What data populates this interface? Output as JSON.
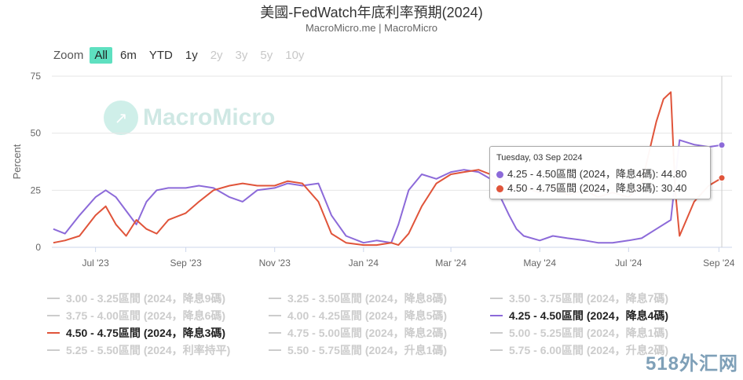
{
  "title": "美國-FedWatch年底利率預期(2024)",
  "subtitle": "MacroMicro.me | MacroMicro",
  "zoom": {
    "label": "Zoom",
    "buttons": [
      {
        "label": "All",
        "state": "active"
      },
      {
        "label": "6m",
        "state": "enabled"
      },
      {
        "label": "YTD",
        "state": "enabled"
      },
      {
        "label": "1y",
        "state": "enabled"
      },
      {
        "label": "2y",
        "state": "disabled"
      },
      {
        "label": "3y",
        "state": "disabled"
      },
      {
        "label": "5y",
        "state": "disabled"
      },
      {
        "label": "10y",
        "state": "disabled"
      }
    ]
  },
  "watermark": "MacroMicro",
  "corner_mark": "518外汇网",
  "tooltip": {
    "date": "Tuesday, 03 Sep 2024",
    "rows": [
      {
        "text": "4.25 - 4.50區間 (2024，降息4碼): 44.80",
        "color": "#8c6ad9"
      },
      {
        "text": "4.50 - 4.75區間 (2024，降息3碼): 30.40",
        "color": "#e0543a"
      }
    ]
  },
  "legend": [
    {
      "label": "3.00 - 3.25區間 (2024，降息9碼)",
      "on": false
    },
    {
      "label": "3.25 - 3.50區間 (2024，降息8碼)",
      "on": false
    },
    {
      "label": "3.50 - 3.75區間 (2024，降息7碼)",
      "on": false
    },
    {
      "label": "3.75 - 4.00區間 (2024，降息6碼)",
      "on": false
    },
    {
      "label": "4.00 - 4.25區間 (2024，降息5碼)",
      "on": false
    },
    {
      "label": "4.25 - 4.50區間 (2024，降息4碼)",
      "on": true,
      "color": "#8c6ad9"
    },
    {
      "label": "4.50 - 4.75區間 (2024，降息3碼)",
      "on": true,
      "color": "#e0543a"
    },
    {
      "label": "4.75 - 5.00區間 (2024，降息2碼)",
      "on": false
    },
    {
      "label": "5.00 - 5.25區間 (2024，降息1碼)",
      "on": false
    },
    {
      "label": "5.25 - 5.50區間 (2024，利率持平)",
      "on": false
    },
    {
      "label": "5.50 - 5.75區間 (2024，升息1碼)",
      "on": false
    },
    {
      "label": "5.75 - 6.00區間 (2024，升息2碼)",
      "on": false
    }
  ],
  "chart_data": {
    "type": "line",
    "ylabel": "Percent",
    "ylim": [
      0,
      75
    ],
    "yticks": [
      0,
      25,
      50,
      75
    ],
    "xlim": [
      "2023-06-01",
      "2024-09-10"
    ],
    "xticks": [
      {
        "date": "2023-07-01",
        "label": "Jul '23"
      },
      {
        "date": "2023-09-01",
        "label": "Sep '23"
      },
      {
        "date": "2023-11-01",
        "label": "Nov '23"
      },
      {
        "date": "2024-01-01",
        "label": "Jan '24"
      },
      {
        "date": "2024-03-01",
        "label": "Mar '24"
      },
      {
        "date": "2024-05-01",
        "label": "May '24"
      },
      {
        "date": "2024-07-01",
        "label": "Jul '24"
      },
      {
        "date": "2024-09-01",
        "label": "Sep '24"
      }
    ],
    "grid": true,
    "series": [
      {
        "name": "4.25 - 4.50區間 (2024，降息4碼)",
        "color": "#8c6ad9",
        "points": [
          [
            "2023-06-02",
            8
          ],
          [
            "2023-06-10",
            6
          ],
          [
            "2023-06-20",
            14
          ],
          [
            "2023-07-01",
            22
          ],
          [
            "2023-07-08",
            25
          ],
          [
            "2023-07-15",
            22
          ],
          [
            "2023-07-22",
            16
          ],
          [
            "2023-07-29",
            10
          ],
          [
            "2023-08-05",
            20
          ],
          [
            "2023-08-12",
            25
          ],
          [
            "2023-08-20",
            26
          ],
          [
            "2023-09-01",
            26
          ],
          [
            "2023-09-10",
            27
          ],
          [
            "2023-09-20",
            26
          ],
          [
            "2023-10-01",
            22
          ],
          [
            "2023-10-10",
            20
          ],
          [
            "2023-10-20",
            25
          ],
          [
            "2023-11-01",
            26
          ],
          [
            "2023-11-10",
            28
          ],
          [
            "2023-11-20",
            27
          ],
          [
            "2023-12-01",
            28
          ],
          [
            "2023-12-10",
            14
          ],
          [
            "2023-12-20",
            5
          ],
          [
            "2024-01-01",
            2
          ],
          [
            "2024-01-10",
            3
          ],
          [
            "2024-01-20",
            2
          ],
          [
            "2024-01-25",
            10
          ],
          [
            "2024-02-01",
            25
          ],
          [
            "2024-02-10",
            32
          ],
          [
            "2024-02-20",
            30
          ],
          [
            "2024-03-01",
            33
          ],
          [
            "2024-03-10",
            34
          ],
          [
            "2024-03-20",
            33
          ],
          [
            "2024-03-28",
            30
          ],
          [
            "2024-04-01",
            26
          ],
          [
            "2024-04-10",
            14
          ],
          [
            "2024-04-15",
            8
          ],
          [
            "2024-04-20",
            5
          ],
          [
            "2024-05-01",
            3
          ],
          [
            "2024-05-10",
            5
          ],
          [
            "2024-05-20",
            4
          ],
          [
            "2024-06-01",
            3
          ],
          [
            "2024-06-10",
            2
          ],
          [
            "2024-06-20",
            2
          ],
          [
            "2024-07-01",
            3
          ],
          [
            "2024-07-10",
            4
          ],
          [
            "2024-07-20",
            8
          ],
          [
            "2024-07-30",
            12
          ],
          [
            "2024-08-05",
            47
          ],
          [
            "2024-08-15",
            45
          ],
          [
            "2024-08-25",
            44
          ],
          [
            "2024-09-03",
            44.8
          ]
        ]
      },
      {
        "name": "4.50 - 4.75區間 (2024，降息3碼)",
        "color": "#e0543a",
        "points": [
          [
            "2023-06-02",
            2
          ],
          [
            "2023-06-10",
            3
          ],
          [
            "2023-06-20",
            5
          ],
          [
            "2023-07-01",
            14
          ],
          [
            "2023-07-08",
            18
          ],
          [
            "2023-07-15",
            10
          ],
          [
            "2023-07-22",
            5
          ],
          [
            "2023-07-29",
            12
          ],
          [
            "2023-08-05",
            8
          ],
          [
            "2023-08-12",
            6
          ],
          [
            "2023-08-20",
            12
          ],
          [
            "2023-09-01",
            15
          ],
          [
            "2023-09-10",
            20
          ],
          [
            "2023-09-20",
            25
          ],
          [
            "2023-10-01",
            27
          ],
          [
            "2023-10-10",
            28
          ],
          [
            "2023-10-20",
            27
          ],
          [
            "2023-11-01",
            27
          ],
          [
            "2023-11-10",
            29
          ],
          [
            "2023-11-20",
            28
          ],
          [
            "2023-12-01",
            20
          ],
          [
            "2023-12-10",
            6
          ],
          [
            "2023-12-20",
            2
          ],
          [
            "2024-01-01",
            1
          ],
          [
            "2024-01-10",
            1
          ],
          [
            "2024-01-20",
            2
          ],
          [
            "2024-01-25",
            1
          ],
          [
            "2024-02-01",
            6
          ],
          [
            "2024-02-10",
            18
          ],
          [
            "2024-02-20",
            28
          ],
          [
            "2024-03-01",
            32
          ],
          [
            "2024-03-10",
            33
          ],
          [
            "2024-03-20",
            34
          ],
          [
            "2024-03-28",
            32
          ],
          [
            "2024-04-01",
            30
          ],
          [
            "2024-04-10",
            28
          ],
          [
            "2024-04-15",
            25
          ],
          [
            "2024-04-20",
            26
          ],
          [
            "2024-05-01",
            24
          ],
          [
            "2024-05-10",
            27
          ],
          [
            "2024-05-20",
            23
          ],
          [
            "2024-06-01",
            25
          ],
          [
            "2024-06-10",
            22
          ],
          [
            "2024-06-20",
            24
          ],
          [
            "2024-07-01",
            22
          ],
          [
            "2024-07-10",
            28
          ],
          [
            "2024-07-20",
            55
          ],
          [
            "2024-07-25",
            65
          ],
          [
            "2024-07-30",
            68
          ],
          [
            "2024-08-02",
            25
          ],
          [
            "2024-08-05",
            5
          ],
          [
            "2024-08-15",
            20
          ],
          [
            "2024-08-25",
            27
          ],
          [
            "2024-09-03",
            30.4
          ]
        ]
      }
    ],
    "tooltip_date": "2024-09-03"
  }
}
